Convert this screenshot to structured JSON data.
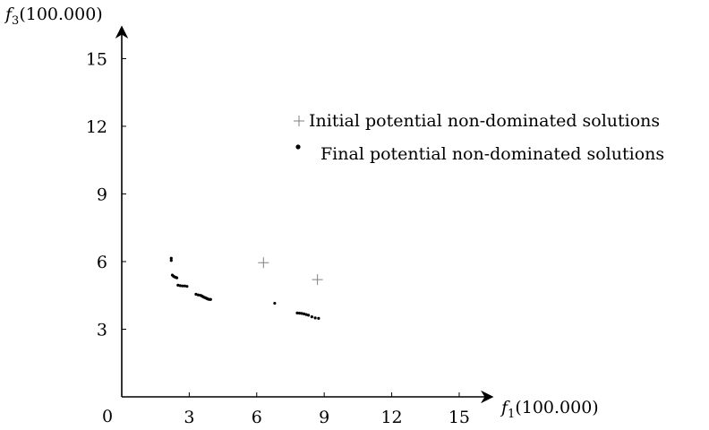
{
  "chart_data": {
    "type": "scatter",
    "xlabel": "f1(100.000)",
    "ylabel": "f3(100.000)",
    "xlabel_main": "f",
    "xlabel_sub": "1",
    "xlabel_unit": "(100.000)",
    "ylabel_main": "f",
    "ylabel_sub": "3",
    "ylabel_unit": "(100.000)",
    "origin_label": "0",
    "xlim": [
      0,
      16.5
    ],
    "ylim": [
      0,
      16.2
    ],
    "x_ticks": [
      {
        "value": 3,
        "label": "3"
      },
      {
        "value": 6,
        "label": "6"
      },
      {
        "value": 9,
        "label": "9"
      },
      {
        "value": 12,
        "label": "12"
      },
      {
        "value": 15,
        "label": "15"
      }
    ],
    "y_ticks": [
      {
        "value": 3,
        "label": "3"
      },
      {
        "value": 6,
        "label": "6"
      },
      {
        "value": 9,
        "label": "9"
      },
      {
        "value": 12,
        "label": "12"
      },
      {
        "value": 15,
        "label": "15"
      }
    ],
    "grid": false,
    "legend_position": "top-right",
    "series": [
      {
        "name": "Initial potential non-dominated solutions",
        "marker": "plus",
        "color": "#808080",
        "points": [
          [
            6.3,
            5.95
          ],
          [
            8.7,
            5.2
          ]
        ]
      },
      {
        "name": "Final potential non-dominated solutions",
        "marker": "dot",
        "color": "#000000",
        "points": [
          [
            2.2,
            6.15
          ],
          [
            2.2,
            6.05
          ],
          [
            2.25,
            5.4
          ],
          [
            2.3,
            5.35
          ],
          [
            2.35,
            5.32
          ],
          [
            2.4,
            5.3
          ],
          [
            2.45,
            5.28
          ],
          [
            2.5,
            4.95
          ],
          [
            2.6,
            4.93
          ],
          [
            2.7,
            4.92
          ],
          [
            2.8,
            4.92
          ],
          [
            2.9,
            4.9
          ],
          [
            3.3,
            4.55
          ],
          [
            3.4,
            4.52
          ],
          [
            3.5,
            4.5
          ],
          [
            3.55,
            4.48
          ],
          [
            3.6,
            4.45
          ],
          [
            3.65,
            4.42
          ],
          [
            3.7,
            4.4
          ],
          [
            3.75,
            4.38
          ],
          [
            3.8,
            4.35
          ],
          [
            3.85,
            4.33
          ],
          [
            3.9,
            4.32
          ],
          [
            3.95,
            4.32
          ],
          [
            6.8,
            4.15
          ],
          [
            7.8,
            3.72
          ],
          [
            7.9,
            3.71
          ],
          [
            8.0,
            3.7
          ],
          [
            8.1,
            3.68
          ],
          [
            8.2,
            3.65
          ],
          [
            8.3,
            3.62
          ],
          [
            8.45,
            3.55
          ],
          [
            8.6,
            3.5
          ],
          [
            8.75,
            3.48
          ]
        ]
      }
    ]
  }
}
